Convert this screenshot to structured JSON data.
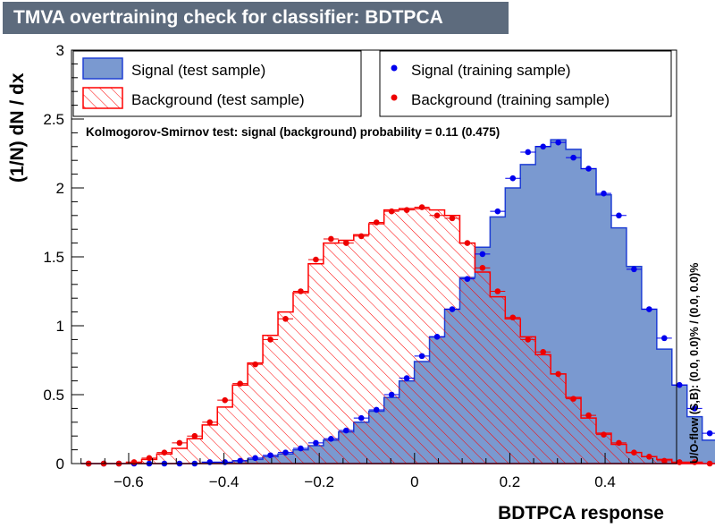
{
  "window_title": "TMVA overtraining check for classifier: BDTPCA",
  "chart_data": {
    "type": "histogram",
    "title": "TMVA overtraining check for classifier: BDTPCA",
    "xlabel": "BDTPCA response",
    "ylabel": "(1/N) dN / dx",
    "xlim": [
      -0.72,
      0.55
    ],
    "ylim": [
      0,
      3
    ],
    "x_ticks": [
      "−0.6",
      "−0.4",
      "−0.2",
      "0",
      "0.2",
      "0.4"
    ],
    "y_ticks": [
      "0",
      "0.5",
      "1",
      "1.5",
      "2",
      "2.5",
      "3"
    ],
    "grid": false,
    "bin_width": 0.0318,
    "bin_edges_start": -0.7,
    "series": [
      {
        "name": "Signal (test sample)",
        "kind": "filled-histogram",
        "color": "#7a99d0",
        "edge_color": "#1f3fd4",
        "values": [
          0,
          0,
          0,
          0,
          0,
          0,
          0,
          0,
          0.01,
          0.01,
          0.02,
          0.03,
          0.05,
          0.07,
          0.1,
          0.13,
          0.17,
          0.23,
          0.3,
          0.38,
          0.48,
          0.6,
          0.74,
          0.92,
          1.12,
          1.35,
          1.57,
          1.79,
          2.0,
          2.17,
          2.3,
          2.35,
          2.28,
          2.14,
          1.95,
          1.71,
          1.43,
          1.12,
          0.83,
          0.57,
          0.34,
          0.17,
          0.06,
          0.01,
          0.0
        ]
      },
      {
        "name": "Background (test sample)",
        "kind": "hatched-histogram",
        "color": "#ff0000",
        "values": [
          0,
          0,
          0,
          0.01,
          0.03,
          0.07,
          0.11,
          0.18,
          0.28,
          0.41,
          0.57,
          0.73,
          0.93,
          1.1,
          1.24,
          1.45,
          1.6,
          1.62,
          1.66,
          1.74,
          1.84,
          1.85,
          1.85,
          1.84,
          1.8,
          1.6,
          1.39,
          1.21,
          1.05,
          0.92,
          0.79,
          0.65,
          0.48,
          0.33,
          0.22,
          0.14,
          0.08,
          0.05,
          0.03,
          0.01,
          0.01,
          0.0,
          0,
          0,
          0
        ]
      },
      {
        "name": "Signal (training sample)",
        "kind": "points",
        "color": "#0000ee",
        "values": [
          0,
          0,
          0,
          0,
          0,
          0,
          0,
          0,
          0.01,
          0.01,
          0.02,
          0.04,
          0.06,
          0.08,
          0.11,
          0.15,
          0.18,
          0.24,
          0.33,
          0.39,
          0.5,
          0.62,
          0.78,
          0.92,
          1.12,
          1.34,
          1.52,
          1.83,
          2.07,
          2.26,
          2.3,
          2.33,
          2.22,
          2.14,
          1.96,
          1.8,
          1.41,
          1.12,
          0.91,
          0.57,
          0.4,
          0.22,
          0.05,
          0.04,
          0.0
        ]
      },
      {
        "name": "Background (training sample)",
        "kind": "points",
        "color": "#ee0000",
        "values": [
          0,
          0,
          0,
          0.01,
          0.04,
          0.08,
          0.15,
          0.2,
          0.3,
          0.46,
          0.58,
          0.72,
          0.9,
          1.05,
          1.25,
          1.48,
          1.63,
          1.6,
          1.65,
          1.75,
          1.83,
          1.84,
          1.86,
          1.8,
          1.78,
          1.6,
          1.42,
          1.25,
          1.06,
          0.9,
          0.81,
          0.65,
          0.47,
          0.35,
          0.21,
          0.15,
          0.08,
          0.05,
          0.02,
          0.01,
          0.01,
          0.0,
          0,
          0,
          0
        ]
      }
    ],
    "legend": {
      "placement": "top",
      "entries": [
        "Signal (test sample)",
        "Signal (training sample)",
        "Background (test sample)",
        "Background (training sample)"
      ]
    },
    "annotation": "Kolmogorov-Smirnov test: signal (background) probability =  0.11 (0.475)",
    "side_label": "U/O-flow (S,B): (0.0, 0.0)% / (0.0, 0.0)%"
  }
}
